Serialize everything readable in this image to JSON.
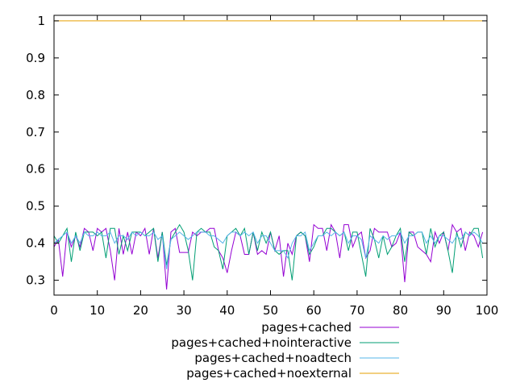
{
  "chart_data": {
    "type": "line",
    "title": "",
    "xlabel": "",
    "ylabel": "",
    "xlim": [
      0,
      100
    ],
    "ylim": [
      0.26,
      1.015
    ],
    "xticks": [
      0,
      10,
      20,
      30,
      40,
      50,
      60,
      70,
      80,
      90,
      100
    ],
    "yticks": [
      0.3,
      0.4,
      0.5,
      0.6,
      0.7,
      0.8,
      0.9,
      1
    ],
    "xtick_labels": [
      "0",
      "10",
      "20",
      "30",
      "40",
      "50",
      "60",
      "70",
      "80",
      "90",
      "100"
    ],
    "ytick_labels": [
      "0.3",
      "0.4",
      "0.5",
      "0.6",
      "0.7",
      "0.8",
      "0.9",
      "1"
    ],
    "grid": false,
    "legend_position": "bottom-center",
    "series": [
      {
        "name": "pages+cached",
        "color": "#9400d3",
        "x": [
          0,
          1,
          2,
          3,
          4,
          5,
          6,
          7,
          8,
          9,
          10,
          11,
          12,
          13,
          14,
          15,
          16,
          17,
          18,
          19,
          20,
          21,
          22,
          23,
          24,
          25,
          26,
          27,
          28,
          29,
          30,
          31,
          32,
          33,
          34,
          35,
          36,
          37,
          38,
          39,
          40,
          41,
          42,
          43,
          44,
          45,
          46,
          47,
          48,
          49,
          50,
          51,
          52,
          53,
          54,
          55,
          56,
          57,
          58,
          59,
          60,
          61,
          62,
          63,
          64,
          65,
          66,
          67,
          68,
          69,
          70,
          71,
          72,
          73,
          74,
          75,
          76,
          77,
          78,
          79,
          80,
          81,
          82,
          83,
          84,
          85,
          86,
          87,
          88,
          89,
          90,
          91,
          92,
          93,
          94,
          95,
          96,
          97,
          98,
          99
        ],
        "y": [
          0.39,
          0.41,
          0.31,
          0.43,
          0.39,
          0.42,
          0.39,
          0.44,
          0.43,
          0.38,
          0.44,
          0.43,
          0.44,
          0.38,
          0.3,
          0.44,
          0.37,
          0.43,
          0.37,
          0.43,
          0.42,
          0.44,
          0.37,
          0.44,
          0.36,
          0.43,
          0.275,
          0.43,
          0.44,
          0.375,
          0.375,
          0.375,
          0.43,
          0.42,
          0.43,
          0.43,
          0.44,
          0.44,
          0.38,
          0.36,
          0.32,
          0.38,
          0.43,
          0.42,
          0.37,
          0.37,
          0.43,
          0.37,
          0.38,
          0.37,
          0.43,
          0.38,
          0.42,
          0.31,
          0.4,
          0.37,
          0.42,
          0.43,
          0.42,
          0.35,
          0.45,
          0.44,
          0.44,
          0.38,
          0.45,
          0.43,
          0.36,
          0.45,
          0.45,
          0.39,
          0.42,
          0.43,
          0.36,
          0.38,
          0.44,
          0.43,
          0.43,
          0.43,
          0.39,
          0.4,
          0.43,
          0.295,
          0.43,
          0.43,
          0.39,
          0.38,
          0.37,
          0.35,
          0.43,
          0.4,
          0.43,
          0.38,
          0.45,
          0.43,
          0.44,
          0.38,
          0.43,
          0.42,
          0.39,
          0.43
        ]
      },
      {
        "name": "pages+cached+nointeractive",
        "color": "#009e73",
        "x": [
          0,
          1,
          2,
          3,
          4,
          5,
          6,
          7,
          8,
          9,
          10,
          11,
          12,
          13,
          14,
          15,
          16,
          17,
          18,
          19,
          20,
          21,
          22,
          23,
          24,
          25,
          26,
          27,
          28,
          29,
          30,
          31,
          32,
          33,
          34,
          35,
          36,
          37,
          38,
          39,
          40,
          41,
          42,
          43,
          44,
          45,
          46,
          47,
          48,
          49,
          50,
          51,
          52,
          53,
          54,
          55,
          56,
          57,
          58,
          59,
          60,
          61,
          62,
          63,
          64,
          65,
          66,
          67,
          68,
          69,
          70,
          71,
          72,
          73,
          74,
          75,
          76,
          77,
          78,
          79,
          80,
          81,
          82,
          83,
          84,
          85,
          86,
          87,
          88,
          89,
          90,
          91,
          92,
          93,
          94,
          95,
          96,
          97,
          98,
          99
        ],
        "y": [
          0.42,
          0.4,
          0.42,
          0.44,
          0.35,
          0.43,
          0.38,
          0.43,
          0.43,
          0.43,
          0.42,
          0.43,
          0.36,
          0.44,
          0.44,
          0.37,
          0.42,
          0.38,
          0.43,
          0.43,
          0.43,
          0.42,
          0.43,
          0.44,
          0.35,
          0.43,
          0.34,
          0.41,
          0.43,
          0.45,
          0.43,
          0.38,
          0.3,
          0.43,
          0.44,
          0.43,
          0.43,
          0.39,
          0.38,
          0.33,
          0.42,
          0.43,
          0.44,
          0.42,
          0.44,
          0.37,
          0.43,
          0.38,
          0.43,
          0.4,
          0.43,
          0.38,
          0.37,
          0.38,
          0.38,
          0.3,
          0.42,
          0.43,
          0.42,
          0.37,
          0.39,
          0.42,
          0.42,
          0.44,
          0.44,
          0.43,
          0.42,
          0.43,
          0.38,
          0.43,
          0.43,
          0.37,
          0.31,
          0.44,
          0.41,
          0.36,
          0.42,
          0.37,
          0.39,
          0.42,
          0.44,
          0.35,
          0.43,
          0.42,
          0.43,
          0.43,
          0.37,
          0.44,
          0.39,
          0.42,
          0.43,
          0.38,
          0.32,
          0.43,
          0.39,
          0.43,
          0.42,
          0.44,
          0.44,
          0.36
        ]
      },
      {
        "name": "pages+cached+noadtech",
        "color": "#56b4e9",
        "x": [
          0,
          1,
          2,
          3,
          4,
          5,
          6,
          7,
          8,
          9,
          10,
          11,
          12,
          13,
          14,
          15,
          16,
          17,
          18,
          19,
          20,
          21,
          22,
          23,
          24,
          25,
          26,
          27,
          28,
          29,
          30,
          31,
          32,
          33,
          34,
          35,
          36,
          37,
          38,
          39,
          40,
          41,
          42,
          43,
          44,
          45,
          46,
          47,
          48,
          49,
          50,
          51,
          52,
          53,
          54,
          55,
          56,
          57,
          58,
          59,
          60,
          61,
          62,
          63,
          64,
          65,
          66,
          67,
          68,
          69,
          70,
          71,
          72,
          73,
          74,
          75,
          76,
          77,
          78,
          79,
          80,
          81,
          82,
          83,
          84,
          85,
          86,
          87,
          88,
          89,
          90,
          91,
          92,
          93,
          94,
          95,
          96,
          97,
          98,
          99
        ],
        "y": [
          0.4,
          0.41,
          0.42,
          0.43,
          0.4,
          0.42,
          0.4,
          0.43,
          0.42,
          0.42,
          0.43,
          0.42,
          0.42,
          0.43,
          0.4,
          0.42,
          0.42,
          0.41,
          0.43,
          0.42,
          0.43,
          0.42,
          0.42,
          0.43,
          0.41,
          0.42,
          0.33,
          0.41,
          0.42,
          0.43,
          0.42,
          0.41,
          0.42,
          0.43,
          0.43,
          0.43,
          0.42,
          0.42,
          0.41,
          0.4,
          0.42,
          0.43,
          0.43,
          0.42,
          0.43,
          0.42,
          0.43,
          0.4,
          0.42,
          0.42,
          0.4,
          0.38,
          0.38,
          0.38,
          0.36,
          0.4,
          0.42,
          0.42,
          0.43,
          0.38,
          0.4,
          0.42,
          0.42,
          0.43,
          0.42,
          0.43,
          0.42,
          0.43,
          0.4,
          0.42,
          0.42,
          0.41,
          0.36,
          0.42,
          0.41,
          0.4,
          0.42,
          0.41,
          0.42,
          0.42,
          0.43,
          0.4,
          0.42,
          0.42,
          0.43,
          0.43,
          0.4,
          0.42,
          0.4,
          0.42,
          0.42,
          0.41,
          0.4,
          0.42,
          0.41,
          0.43,
          0.42,
          0.43,
          0.42,
          0.4
        ]
      },
      {
        "name": "pages+cached+noexternal",
        "color": "#e69f00",
        "x": [
          0,
          1,
          2,
          3,
          4,
          5,
          6,
          7,
          8,
          9,
          10,
          11,
          12,
          13,
          14,
          15,
          16,
          17,
          18,
          19,
          20,
          21,
          22,
          23,
          24,
          25,
          26,
          27,
          28,
          29,
          30,
          31,
          32,
          33,
          34,
          35,
          36,
          37,
          38,
          39,
          40,
          41,
          42,
          43,
          44,
          45,
          46,
          47,
          48,
          49,
          50,
          51,
          52,
          53,
          54,
          55,
          56,
          57,
          58,
          59,
          60,
          61,
          62,
          63,
          64,
          65,
          66,
          67,
          68,
          69,
          70,
          71,
          72,
          73,
          74,
          75,
          76,
          77,
          78,
          79,
          80,
          81,
          82,
          83,
          84,
          85,
          86,
          87,
          88,
          89,
          90,
          91,
          92,
          93,
          94,
          95,
          96,
          97,
          98,
          99
        ],
        "y": [
          1,
          1,
          1,
          1,
          1,
          1,
          1,
          1,
          1,
          1,
          1,
          1,
          1,
          1,
          1,
          1,
          1,
          1,
          1,
          1,
          1,
          1,
          1,
          1,
          1,
          1,
          1,
          1,
          1,
          1,
          1,
          1,
          1,
          1,
          1,
          1,
          1,
          1,
          1,
          1,
          1,
          1,
          1,
          1,
          1,
          1,
          1,
          1,
          1,
          1,
          1,
          1,
          1,
          1,
          1,
          1,
          1,
          1,
          1,
          1,
          1,
          1,
          1,
          1,
          1,
          1,
          1,
          1,
          1,
          1,
          1,
          1,
          1,
          1,
          1,
          1,
          1,
          1,
          1,
          1,
          1,
          1,
          1,
          1,
          1,
          1,
          1,
          1,
          1,
          1,
          1,
          1,
          1,
          1,
          1,
          1,
          1,
          1,
          1,
          1
        ]
      }
    ]
  }
}
